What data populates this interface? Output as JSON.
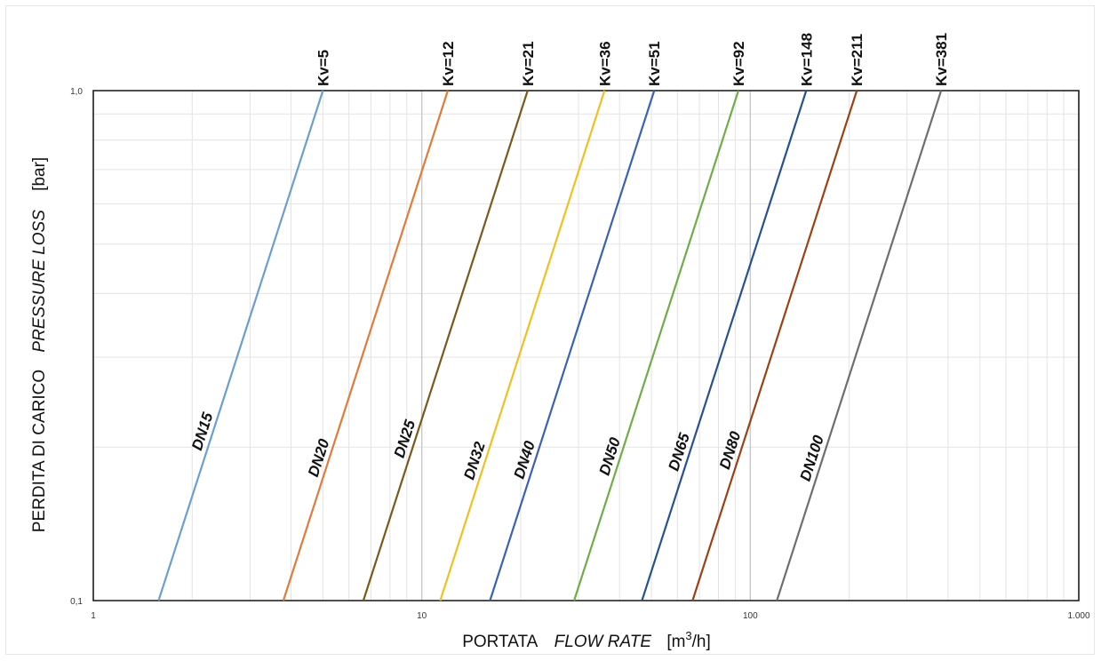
{
  "chart_data": {
    "type": "line",
    "xscale": "log",
    "yscale": "log",
    "xlim": [
      1,
      1000
    ],
    "ylim": [
      0.1,
      1.0
    ],
    "x_ticks": [
      {
        "value": 1,
        "label": "1"
      },
      {
        "value": 10,
        "label": "10"
      },
      {
        "value": 100,
        "label": "100"
      },
      {
        "value": 1000,
        "label": "1.000"
      }
    ],
    "y_ticks": [
      {
        "value": 0.1,
        "label": "0,1"
      },
      {
        "value": 1.0,
        "label": "1,0"
      }
    ],
    "xlabel": {
      "plain": "PORTATA",
      "italic": "FLOW RATE",
      "unit_pre": "[m",
      "unit_sup": "3",
      "unit_post": "/h]"
    },
    "ylabel": {
      "plain": "PERDITA DI CARICO",
      "italic": "PRESSURE LOSS",
      "unit": "[bar]"
    },
    "grid": true,
    "series": [
      {
        "name": "DN15",
        "kv": 5,
        "kv_label": "Kv=5",
        "color": "#6a9fd0",
        "points": [
          [
            1.58,
            0.1
          ],
          [
            5,
            1.0
          ]
        ],
        "label_at": 2.3
      },
      {
        "name": "DN20",
        "kv": 12,
        "kv_label": "Kv=12",
        "color": "#e07b3a",
        "points": [
          [
            3.79,
            0.1
          ],
          [
            12,
            1.0
          ]
        ],
        "label_at": 5.2
      },
      {
        "name": "DN25",
        "kv": 21,
        "kv_label": "Kv=21",
        "color": "#7a5a1a",
        "points": [
          [
            6.64,
            0.1
          ],
          [
            21,
            1.0
          ]
        ],
        "label_at": 9.5
      },
      {
        "name": "DN32",
        "kv": 36,
        "kv_label": "Kv=36",
        "color": "#f0c020",
        "points": [
          [
            11.38,
            0.1
          ],
          [
            36,
            1.0
          ]
        ],
        "label_at": 15.5
      },
      {
        "name": "DN40",
        "kv": 51,
        "kv_label": "Kv=51",
        "color": "#3a62b0",
        "points": [
          [
            16.13,
            0.1
          ],
          [
            51,
            1.0
          ]
        ],
        "label_at": 22
      },
      {
        "name": "DN50",
        "kv": 92,
        "kv_label": "Kv=92",
        "color": "#70ac48",
        "points": [
          [
            29.09,
            0.1
          ],
          [
            92,
            1.0
          ]
        ],
        "label_at": 40
      },
      {
        "name": "DN65",
        "kv": 148,
        "kv_label": "Kv=148",
        "color": "#27528f",
        "points": [
          [
            46.8,
            0.1
          ],
          [
            148,
            1.0
          ]
        ],
        "label_at": 65
      },
      {
        "name": "DN80",
        "kv": 211,
        "kv_label": "Kv=211",
        "color": "#9a4212",
        "points": [
          [
            66.72,
            0.1
          ],
          [
            211,
            1.0
          ]
        ],
        "label_at": 93
      },
      {
        "name": "DN100",
        "kv": 381,
        "kv_label": "Kv=381",
        "color": "#6e6e6e",
        "points": [
          [
            120.48,
            0.1
          ],
          [
            381,
            1.0
          ]
        ],
        "label_at": 165
      }
    ]
  }
}
